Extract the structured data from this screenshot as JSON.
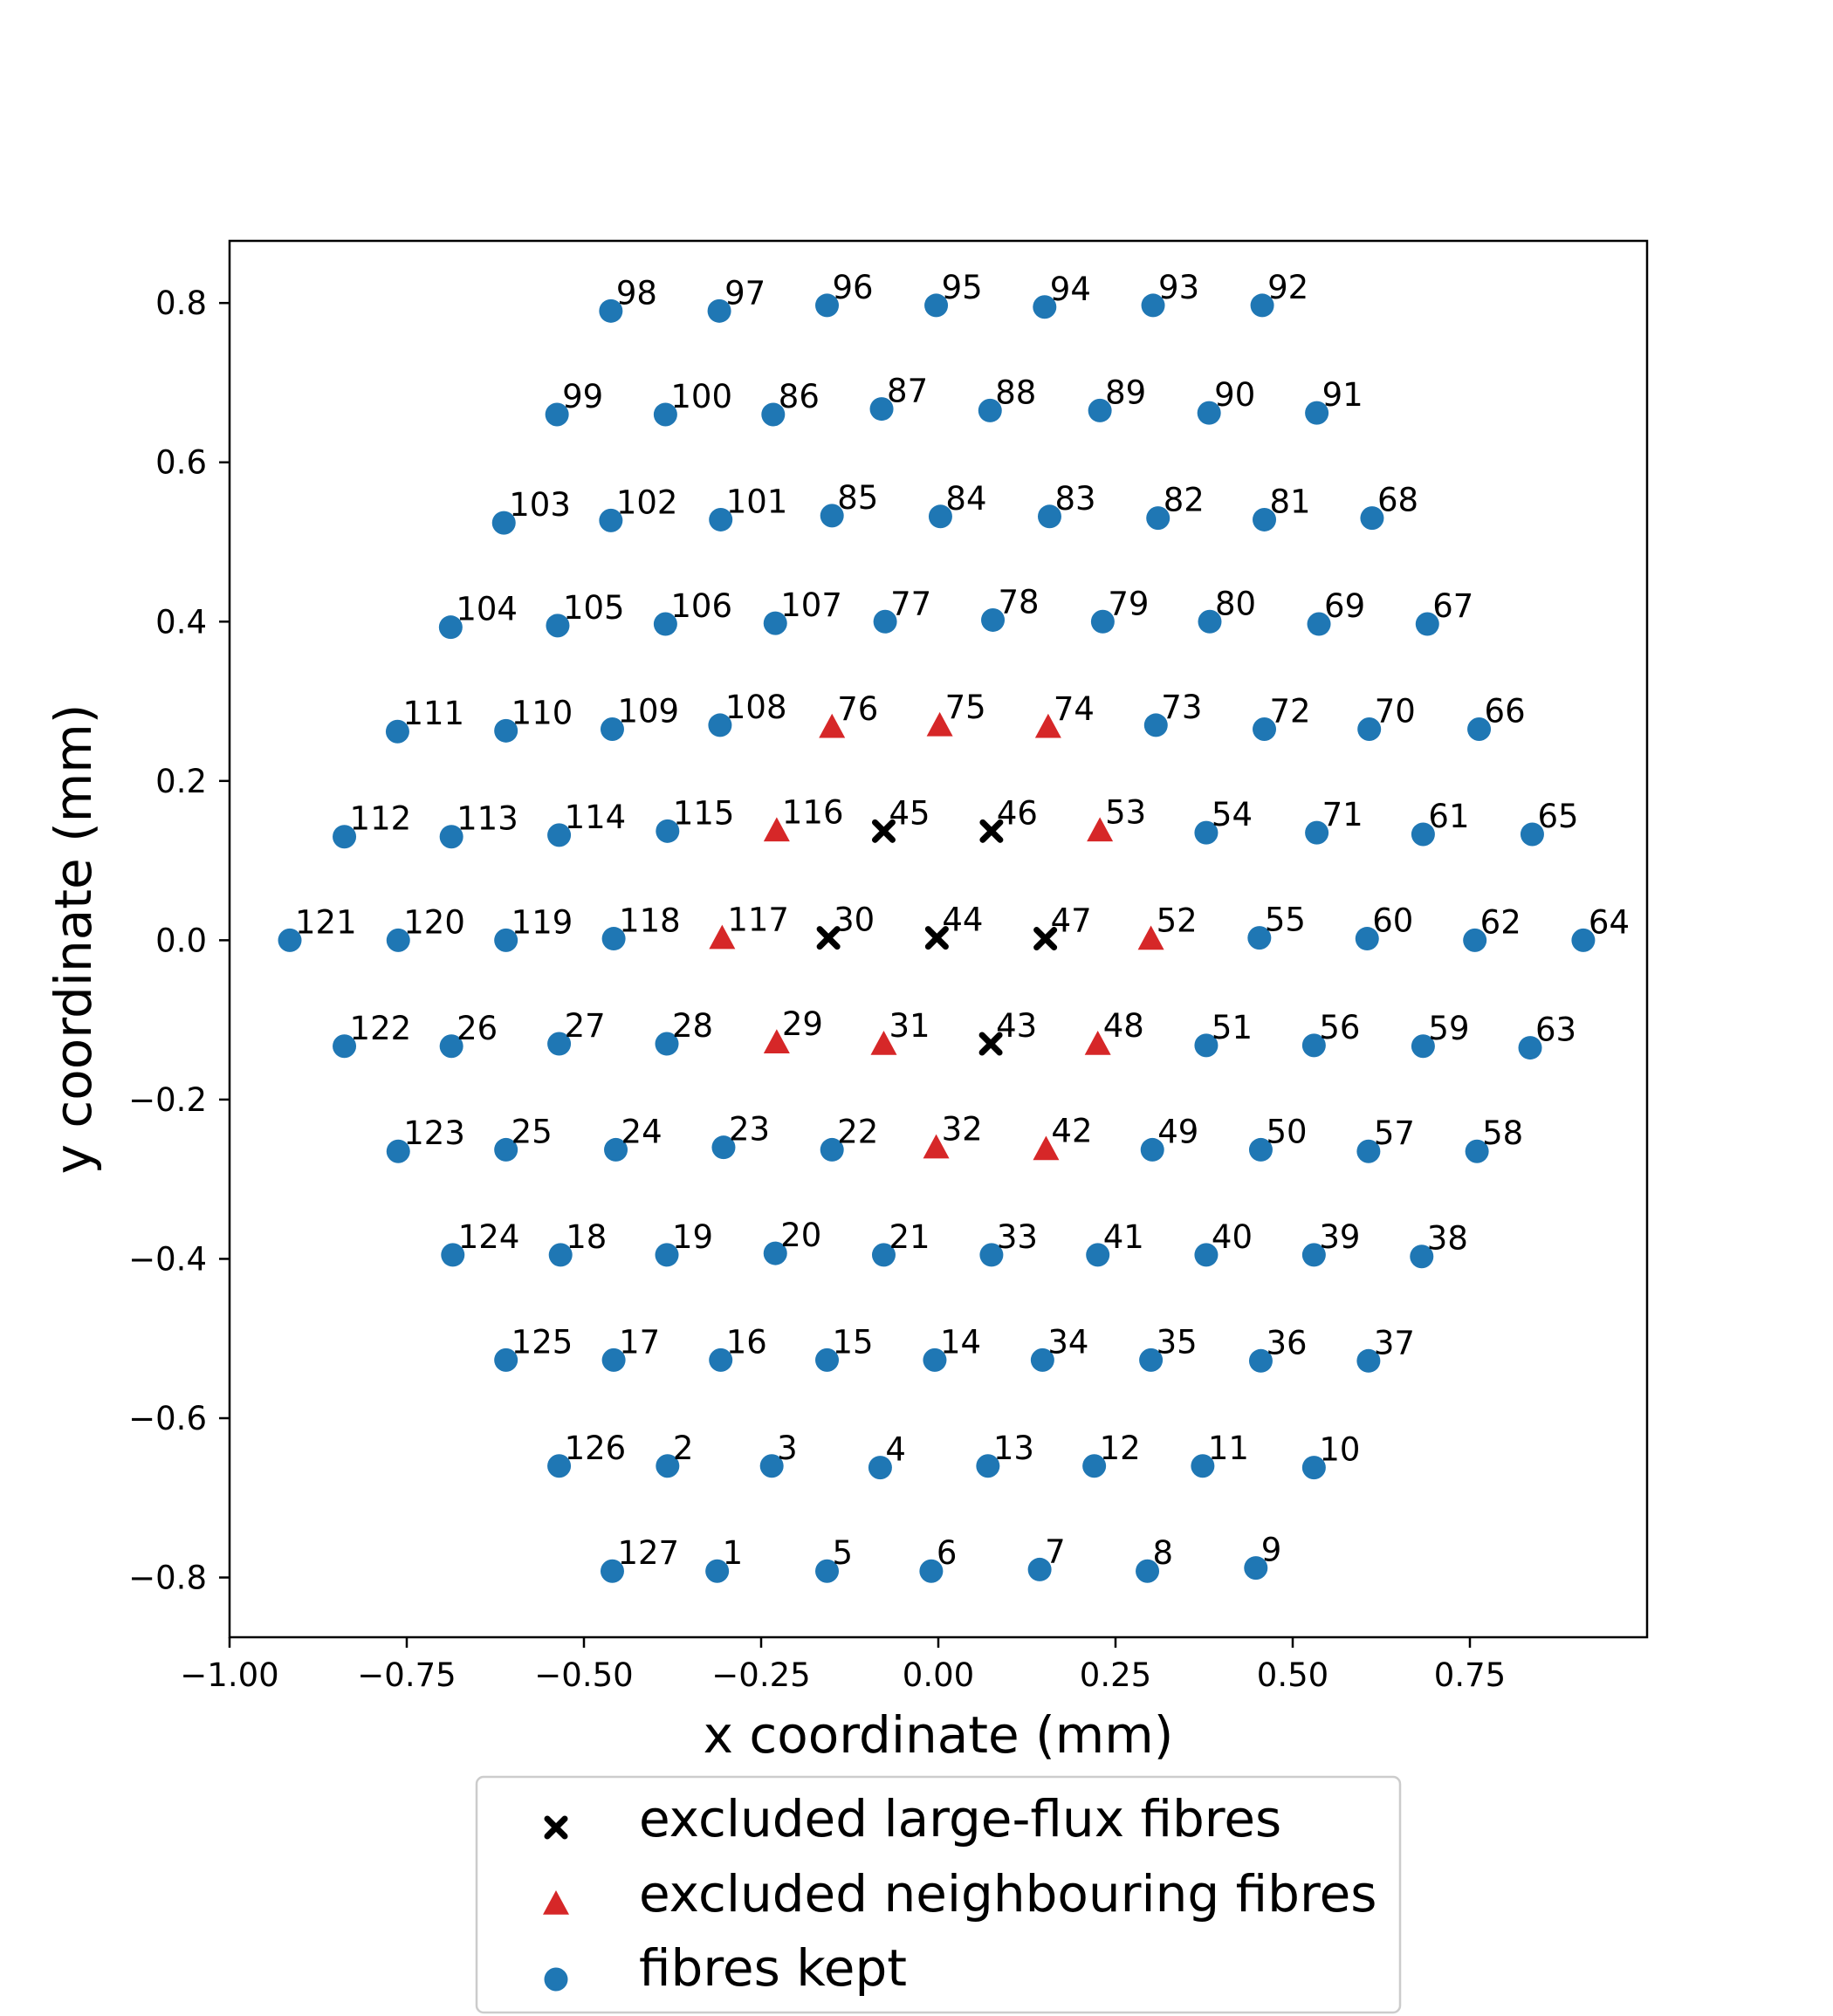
{
  "chart_data": {
    "type": "scatter",
    "xlabel": "x coordinate (mm)",
    "ylabel": "y coordinate (mm)",
    "xlim": [
      -1.0,
      1.0
    ],
    "ylim": [
      -0.875,
      0.878
    ],
    "xticks": [
      -1.0,
      -0.75,
      -0.5,
      -0.25,
      0.0,
      0.25,
      0.5,
      0.75
    ],
    "xtick_labels": [
      "−1.00",
      "−0.75",
      "−0.50",
      "−0.25",
      "0.00",
      "0.25",
      "0.50",
      "0.75"
    ],
    "yticks": [
      0.8,
      0.6,
      0.4,
      0.2,
      0.0,
      -0.2,
      -0.4,
      -0.6,
      -0.8
    ],
    "ytick_labels": [
      "0.8",
      "0.6",
      "0.4",
      "0.2",
      "0.0",
      "−0.2",
      "−0.4",
      "−0.6",
      "−0.8"
    ],
    "legend_position": "below plot",
    "series": [
      {
        "name": "excluded large-flux fibres",
        "marker": "x",
        "color": "#000000",
        "points": [
          {
            "id": "45",
            "x": -0.077,
            "y": 0.137
          },
          {
            "id": "46",
            "x": 0.075,
            "y": 0.137
          },
          {
            "id": "30",
            "x": -0.155,
            "y": 0.003
          },
          {
            "id": "44",
            "x": -0.002,
            "y": 0.003
          },
          {
            "id": "47",
            "x": 0.151,
            "y": 0.002
          },
          {
            "id": "43",
            "x": 0.074,
            "y": -0.13
          }
        ]
      },
      {
        "name": "excluded neighbouring fibres",
        "marker": "triangle",
        "color": "#d62728",
        "points": [
          {
            "id": "76",
            "x": -0.15,
            "y": 0.268
          },
          {
            "id": "75",
            "x": 0.002,
            "y": 0.27
          },
          {
            "id": "74",
            "x": 0.155,
            "y": 0.268
          },
          {
            "id": "116",
            "x": -0.228,
            "y": 0.138
          },
          {
            "id": "53",
            "x": 0.228,
            "y": 0.138
          },
          {
            "id": "117",
            "x": -0.305,
            "y": 0.003
          },
          {
            "id": "52",
            "x": 0.3,
            "y": 0.002
          },
          {
            "id": "29",
            "x": -0.228,
            "y": -0.128
          },
          {
            "id": "31",
            "x": -0.077,
            "y": -0.13
          },
          {
            "id": "48",
            "x": 0.225,
            "y": -0.13
          },
          {
            "id": "32",
            "x": -0.003,
            "y": -0.26
          },
          {
            "id": "42",
            "x": 0.152,
            "y": -0.262
          }
        ]
      },
      {
        "name": "fibres kept",
        "marker": "circle",
        "color": "#1f77b4",
        "points": [
          {
            "id": "98",
            "x": -0.462,
            "y": 0.79
          },
          {
            "id": "97",
            "x": -0.309,
            "y": 0.79
          },
          {
            "id": "96",
            "x": -0.157,
            "y": 0.797
          },
          {
            "id": "95",
            "x": -0.003,
            "y": 0.797
          },
          {
            "id": "94",
            "x": 0.15,
            "y": 0.795
          },
          {
            "id": "93",
            "x": 0.303,
            "y": 0.797
          },
          {
            "id": "92",
            "x": 0.457,
            "y": 0.797
          },
          {
            "id": "99",
            "x": -0.538,
            "y": 0.66
          },
          {
            "id": "100",
            "x": -0.385,
            "y": 0.66
          },
          {
            "id": "86",
            "x": -0.233,
            "y": 0.66
          },
          {
            "id": "87",
            "x": -0.08,
            "y": 0.667
          },
          {
            "id": "88",
            "x": 0.073,
            "y": 0.665
          },
          {
            "id": "89",
            "x": 0.228,
            "y": 0.665
          },
          {
            "id": "90",
            "x": 0.382,
            "y": 0.662
          },
          {
            "id": "91",
            "x": 0.534,
            "y": 0.662
          },
          {
            "id": "103",
            "x": -0.613,
            "y": 0.524
          },
          {
            "id": "102",
            "x": -0.462,
            "y": 0.527
          },
          {
            "id": "101",
            "x": -0.307,
            "y": 0.528
          },
          {
            "id": "85",
            "x": -0.15,
            "y": 0.533
          },
          {
            "id": "84",
            "x": 0.003,
            "y": 0.532
          },
          {
            "id": "83",
            "x": 0.157,
            "y": 0.532
          },
          {
            "id": "82",
            "x": 0.31,
            "y": 0.53
          },
          {
            "id": "81",
            "x": 0.46,
            "y": 0.528
          },
          {
            "id": "68",
            "x": 0.612,
            "y": 0.53
          },
          {
            "id": "104",
            "x": -0.688,
            "y": 0.393
          },
          {
            "id": "105",
            "x": -0.537,
            "y": 0.395
          },
          {
            "id": "106",
            "x": -0.385,
            "y": 0.397
          },
          {
            "id": "107",
            "x": -0.23,
            "y": 0.398
          },
          {
            "id": "77",
            "x": -0.075,
            "y": 0.4
          },
          {
            "id": "78",
            "x": 0.077,
            "y": 0.402
          },
          {
            "id": "79",
            "x": 0.232,
            "y": 0.4
          },
          {
            "id": "80",
            "x": 0.383,
            "y": 0.4
          },
          {
            "id": "69",
            "x": 0.537,
            "y": 0.397
          },
          {
            "id": "67",
            "x": 0.69,
            "y": 0.397
          },
          {
            "id": "111",
            "x": -0.763,
            "y": 0.262
          },
          {
            "id": "110",
            "x": -0.61,
            "y": 0.263
          },
          {
            "id": "109",
            "x": -0.46,
            "y": 0.265
          },
          {
            "id": "108",
            "x": -0.308,
            "y": 0.27
          },
          {
            "id": "73",
            "x": 0.307,
            "y": 0.27
          },
          {
            "id": "72",
            "x": 0.46,
            "y": 0.265
          },
          {
            "id": "70",
            "x": 0.608,
            "y": 0.265
          },
          {
            "id": "66",
            "x": 0.763,
            "y": 0.265
          },
          {
            "id": "112",
            "x": -0.838,
            "y": 0.13
          },
          {
            "id": "113",
            "x": -0.687,
            "y": 0.13
          },
          {
            "id": "114",
            "x": -0.535,
            "y": 0.132
          },
          {
            "id": "115",
            "x": -0.382,
            "y": 0.137
          },
          {
            "id": "54",
            "x": 0.378,
            "y": 0.135
          },
          {
            "id": "71",
            "x": 0.534,
            "y": 0.135
          },
          {
            "id": "61",
            "x": 0.684,
            "y": 0.133
          },
          {
            "id": "65",
            "x": 0.838,
            "y": 0.133
          },
          {
            "id": "121",
            "x": -0.915,
            "y": 0.0
          },
          {
            "id": "120",
            "x": -0.762,
            "y": 0.0
          },
          {
            "id": "119",
            "x": -0.61,
            "y": 0.0
          },
          {
            "id": "118",
            "x": -0.458,
            "y": 0.002
          },
          {
            "id": "55",
            "x": 0.453,
            "y": 0.003
          },
          {
            "id": "60",
            "x": 0.605,
            "y": 0.002
          },
          {
            "id": "62",
            "x": 0.757,
            "y": 0.0
          },
          {
            "id": "64",
            "x": 0.91,
            "y": 0.0
          },
          {
            "id": "122",
            "x": -0.838,
            "y": -0.133
          },
          {
            "id": "26",
            "x": -0.687,
            "y": -0.133
          },
          {
            "id": "27",
            "x": -0.535,
            "y": -0.13
          },
          {
            "id": "28",
            "x": -0.383,
            "y": -0.13
          },
          {
            "id": "51",
            "x": 0.378,
            "y": -0.132
          },
          {
            "id": "56",
            "x": 0.53,
            "y": -0.132
          },
          {
            "id": "59",
            "x": 0.684,
            "y": -0.133
          },
          {
            "id": "63",
            "x": 0.835,
            "y": -0.135
          },
          {
            "id": "123",
            "x": -0.762,
            "y": -0.265
          },
          {
            "id": "25",
            "x": -0.61,
            "y": -0.263
          },
          {
            "id": "24",
            "x": -0.455,
            "y": -0.263
          },
          {
            "id": "23",
            "x": -0.303,
            "y": -0.26
          },
          {
            "id": "22",
            "x": -0.15,
            "y": -0.263
          },
          {
            "id": "49",
            "x": 0.302,
            "y": -0.263
          },
          {
            "id": "50",
            "x": 0.455,
            "y": -0.263
          },
          {
            "id": "57",
            "x": 0.607,
            "y": -0.265
          },
          {
            "id": "58",
            "x": 0.76,
            "y": -0.265
          },
          {
            "id": "124",
            "x": -0.685,
            "y": -0.395
          },
          {
            "id": "18",
            "x": -0.533,
            "y": -0.395
          },
          {
            "id": "19",
            "x": -0.383,
            "y": -0.395
          },
          {
            "id": "20",
            "x": -0.23,
            "y": -0.393
          },
          {
            "id": "21",
            "x": -0.077,
            "y": -0.395
          },
          {
            "id": "33",
            "x": 0.075,
            "y": -0.395
          },
          {
            "id": "41",
            "x": 0.225,
            "y": -0.395
          },
          {
            "id": "40",
            "x": 0.378,
            "y": -0.395
          },
          {
            "id": "39",
            "x": 0.53,
            "y": -0.395
          },
          {
            "id": "38",
            "x": 0.682,
            "y": -0.397
          },
          {
            "id": "125",
            "x": -0.61,
            "y": -0.527
          },
          {
            "id": "17",
            "x": -0.458,
            "y": -0.527
          },
          {
            "id": "16",
            "x": -0.307,
            "y": -0.527
          },
          {
            "id": "15",
            "x": -0.157,
            "y": -0.527
          },
          {
            "id": "14",
            "x": -0.005,
            "y": -0.527
          },
          {
            "id": "34",
            "x": 0.147,
            "y": -0.527
          },
          {
            "id": "35",
            "x": 0.3,
            "y": -0.527
          },
          {
            "id": "36",
            "x": 0.455,
            "y": -0.528
          },
          {
            "id": "37",
            "x": 0.607,
            "y": -0.528
          },
          {
            "id": "126",
            "x": -0.535,
            "y": -0.66
          },
          {
            "id": "2",
            "x": -0.382,
            "y": -0.66
          },
          {
            "id": "3",
            "x": -0.235,
            "y": -0.66
          },
          {
            "id": "4",
            "x": -0.082,
            "y": -0.662
          },
          {
            "id": "13",
            "x": 0.07,
            "y": -0.66
          },
          {
            "id": "12",
            "x": 0.22,
            "y": -0.66
          },
          {
            "id": "11",
            "x": 0.373,
            "y": -0.66
          },
          {
            "id": "10",
            "x": 0.53,
            "y": -0.662
          },
          {
            "id": "127",
            "x": -0.46,
            "y": -0.792
          },
          {
            "id": "1",
            "x": -0.312,
            "y": -0.792
          },
          {
            "id": "5",
            "x": -0.157,
            "y": -0.792
          },
          {
            "id": "6",
            "x": -0.01,
            "y": -0.792
          },
          {
            "id": "7",
            "x": 0.143,
            "y": -0.79
          },
          {
            "id": "8",
            "x": 0.295,
            "y": -0.792
          },
          {
            "id": "9",
            "x": 0.448,
            "y": -0.788
          }
        ]
      }
    ]
  }
}
